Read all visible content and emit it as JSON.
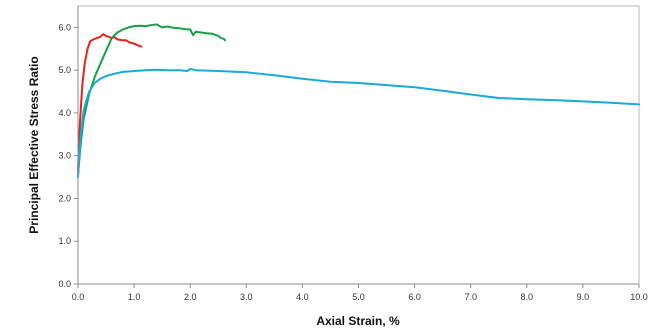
{
  "chart_data": {
    "type": "line",
    "title": "",
    "xlabel": "Axial Strain, %",
    "ylabel": "Principal Effective Stress Ratio",
    "xlim": [
      0,
      10
    ],
    "ylim": [
      0,
      6.5
    ],
    "xticks": [
      "0.0",
      "1.0",
      "2.0",
      "3.0",
      "4.0",
      "5.0",
      "6.0",
      "7.0",
      "8.0",
      "9.0",
      "10.0"
    ],
    "yticks": [
      "0.0",
      "1.0",
      "2.0",
      "3.0",
      "4.0",
      "5.0",
      "6.0"
    ],
    "grid": false,
    "legend": "none",
    "series": [
      {
        "color": "#e8211e",
        "x": [
          0.0,
          0.02,
          0.05,
          0.08,
          0.12,
          0.17,
          0.22,
          0.28,
          0.33,
          0.4,
          0.45,
          0.5,
          0.55,
          0.6,
          0.65,
          0.7,
          0.78,
          0.85,
          0.92,
          1.0,
          1.07,
          1.13
        ],
        "y": [
          2.65,
          3.4,
          4.1,
          4.7,
          5.15,
          5.5,
          5.68,
          5.72,
          5.75,
          5.78,
          5.84,
          5.8,
          5.78,
          5.75,
          5.77,
          5.72,
          5.7,
          5.7,
          5.65,
          5.62,
          5.58,
          5.55
        ]
      },
      {
        "color": "#17a047",
        "x": [
          0.0,
          0.05,
          0.1,
          0.2,
          0.3,
          0.4,
          0.5,
          0.6,
          0.7,
          0.8,
          0.9,
          1.0,
          1.1,
          1.2,
          1.3,
          1.4,
          1.5,
          1.6,
          1.7,
          1.8,
          1.9,
          2.0,
          2.05,
          2.1,
          2.2,
          2.3,
          2.4,
          2.5,
          2.55,
          2.6,
          2.62
        ],
        "y": [
          2.55,
          3.3,
          3.85,
          4.45,
          4.85,
          5.15,
          5.45,
          5.75,
          5.88,
          5.95,
          6.0,
          6.03,
          6.04,
          6.03,
          6.05,
          6.07,
          6.0,
          6.02,
          5.99,
          5.98,
          5.96,
          5.95,
          5.82,
          5.9,
          5.88,
          5.86,
          5.85,
          5.8,
          5.75,
          5.73,
          5.7
        ]
      },
      {
        "color": "#1ba9db",
        "x": [
          0.0,
          0.05,
          0.1,
          0.15,
          0.2,
          0.3,
          0.4,
          0.5,
          0.6,
          0.7,
          0.8,
          1.0,
          1.2,
          1.4,
          1.6,
          1.8,
          1.95,
          2.0,
          2.1,
          2.5,
          3.0,
          3.5,
          4.0,
          4.5,
          5.0,
          5.5,
          6.0,
          6.5,
          7.0,
          7.5,
          8.0,
          8.5,
          9.0,
          9.5,
          10.0
        ],
        "y": [
          2.5,
          3.5,
          4.05,
          4.3,
          4.5,
          4.7,
          4.8,
          4.86,
          4.9,
          4.93,
          4.96,
          4.98,
          5.0,
          5.01,
          5.0,
          5.0,
          4.98,
          5.03,
          5.0,
          4.98,
          4.95,
          4.88,
          4.8,
          4.73,
          4.7,
          4.65,
          4.6,
          4.52,
          4.43,
          4.35,
          4.32,
          4.3,
          4.27,
          4.24,
          4.2
        ]
      }
    ]
  }
}
